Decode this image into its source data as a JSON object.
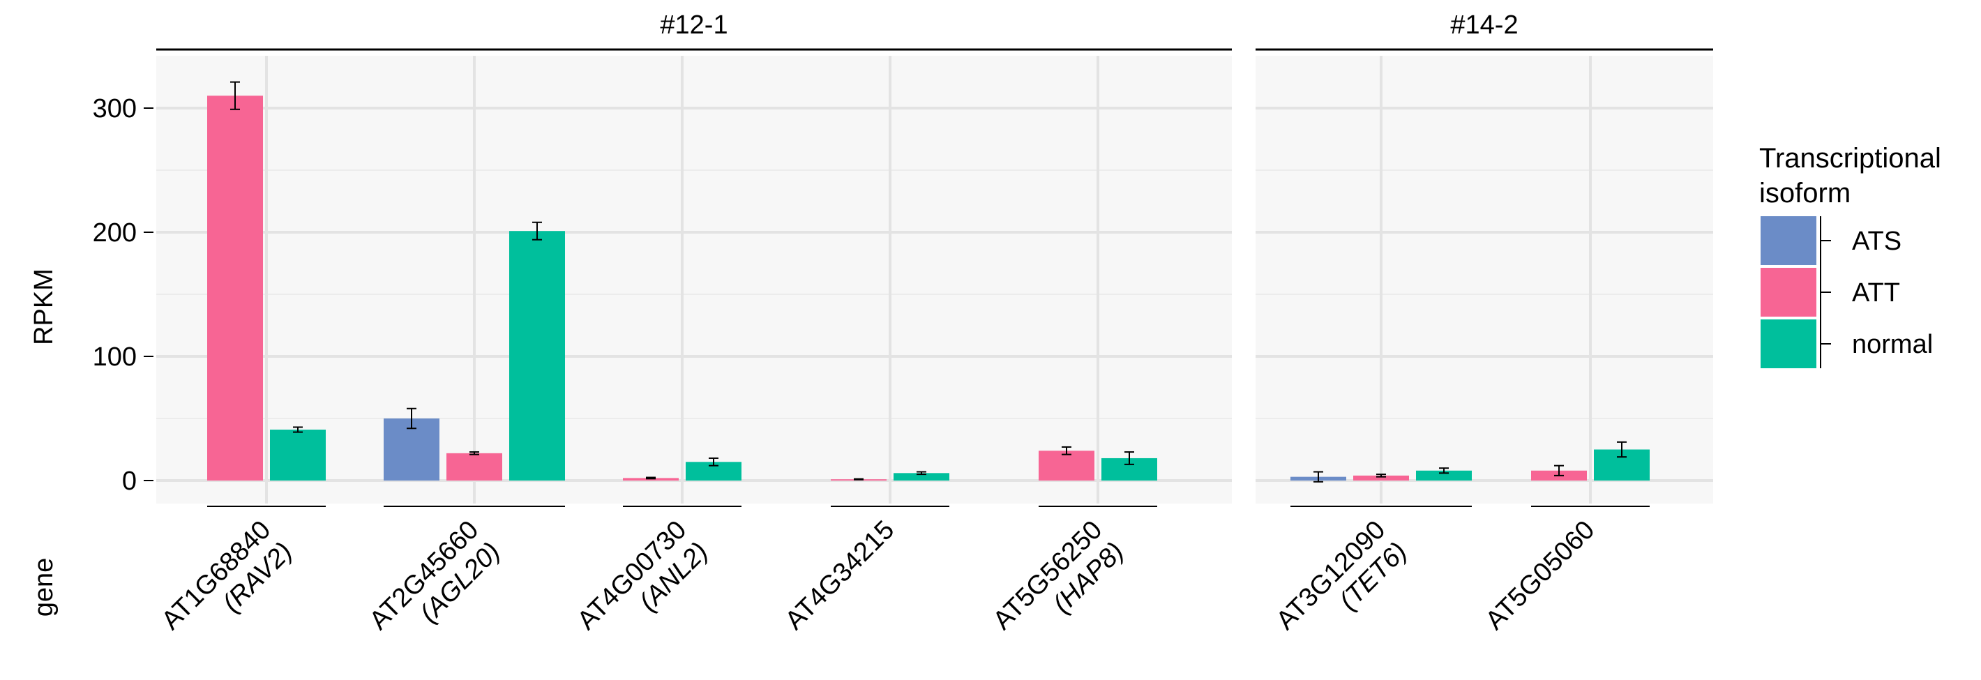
{
  "chart_data": {
    "type": "bar",
    "ylabel": "RPKM",
    "xlabel": "gene",
    "ylim": [
      -20,
      342
    ],
    "yticks": [
      0,
      100,
      200,
      300
    ],
    "grid": true,
    "legend": {
      "title": "Transcriptional isoform",
      "title_lines": [
        "Transcriptional",
        "isoform"
      ],
      "placement": "right",
      "entries": [
        {
          "name": "ATS",
          "color": "#6b8cc7"
        },
        {
          "name": "ATT",
          "color": "#f76594"
        },
        {
          "name": "normal",
          "color": "#00bf9c"
        }
      ]
    },
    "panels": [
      {
        "title": "#12-1",
        "genes": [
          {
            "label": "AT1G68840",
            "sublabel": "(RAV2)",
            "bars": [
              {
                "isoform": "ATT",
                "value": 310,
                "err": 11
              },
              {
                "isoform": "normal",
                "value": 41,
                "err": 2
              }
            ]
          },
          {
            "label": "AT2G45660",
            "sublabel": "(AGL20)",
            "bars": [
              {
                "isoform": "ATS",
                "value": 50,
                "err": 8
              },
              {
                "isoform": "ATT",
                "value": 22,
                "err": 1
              },
              {
                "isoform": "normal",
                "value": 201,
                "err": 7
              }
            ]
          },
          {
            "label": "AT4G00730",
            "sublabel": "(ANL2)",
            "bars": [
              {
                "isoform": "ATT",
                "value": 2,
                "err": 0.5
              },
              {
                "isoform": "normal",
                "value": 15,
                "err": 3
              }
            ]
          },
          {
            "label": "AT4G34215",
            "sublabel": "",
            "bars": [
              {
                "isoform": "ATT",
                "value": 1,
                "err": 0.3
              },
              {
                "isoform": "normal",
                "value": 6,
                "err": 1
              }
            ]
          },
          {
            "label": "AT5G56250",
            "sublabel": "(HAP8)",
            "bars": [
              {
                "isoform": "ATT",
                "value": 24,
                "err": 3
              },
              {
                "isoform": "normal",
                "value": 18,
                "err": 5
              }
            ]
          }
        ]
      },
      {
        "title": "#14-2",
        "genes": [
          {
            "label": "AT3G12090",
            "sublabel": "(TET6)",
            "bars": [
              {
                "isoform": "ATS",
                "value": 3,
                "err": 4
              },
              {
                "isoform": "ATT",
                "value": 4,
                "err": 1
              },
              {
                "isoform": "normal",
                "value": 8,
                "err": 2
              }
            ]
          },
          {
            "label": "AT5G05060",
            "sublabel": "",
            "bars": [
              {
                "isoform": "ATT",
                "value": 8,
                "err": 4
              },
              {
                "isoform": "normal",
                "value": 25,
                "err": 6
              }
            ]
          }
        ]
      }
    ]
  }
}
